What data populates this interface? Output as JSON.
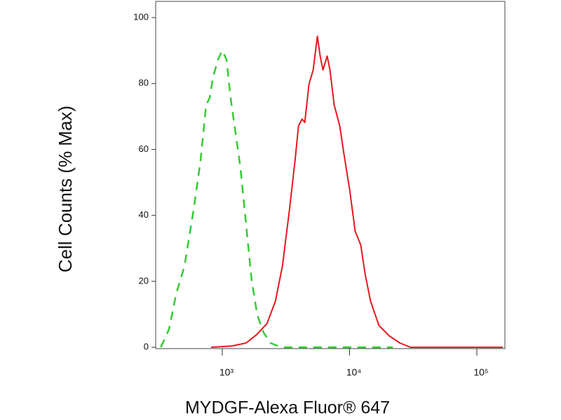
{
  "chart_data": {
    "type": "line",
    "x_label": "MYDGF-Alexa Fluor® 647",
    "y_label": "Cell Counts (% Max)",
    "xscale": "log",
    "xlim": [
      300,
      166000
    ],
    "ylim": [
      -0.4,
      104.9
    ],
    "xticks": [
      {
        "value": 1000,
        "label": "10³"
      },
      {
        "value": 10000,
        "label": "10⁴"
      },
      {
        "value": 100000,
        "label": "10⁵"
      }
    ],
    "yticks": [
      0,
      20,
      40,
      60,
      80,
      100
    ],
    "series": [
      {
        "color": "#33cc33",
        "style": "dashed",
        "x": [
          329,
          382,
          434,
          505,
          595,
          675,
          747,
          796,
          848,
          927,
          1000,
          1079,
          1164,
          1272,
          1390,
          1538,
          1701,
          1883,
          2110,
          2394,
          2894,
          21910
        ],
        "values": [
          0,
          5.5,
          16.1,
          24.6,
          41.6,
          56.5,
          73.5,
          75.6,
          82,
          87.3,
          90,
          87.3,
          75.6,
          65,
          54.4,
          37.4,
          20.4,
          9.8,
          4.5,
          1.3,
          0,
          0
        ]
      },
      {
        "color": "#e8171e",
        "style": "solid",
        "x": [
          817,
          1194,
          1538,
          1859,
          2247,
          2616,
          2969,
          3370,
          3728,
          3971,
          4231,
          4450,
          4800,
          5179,
          5587,
          5878,
          6183,
          6672,
          7019,
          7570,
          8377,
          9036,
          10000,
          11070,
          12250,
          13210,
          14610,
          17020,
          20570,
          24860,
          30060,
          160000
        ],
        "values": [
          0,
          0.4,
          1.3,
          3.8,
          7.2,
          14,
          24.6,
          41.6,
          56.5,
          67.1,
          69.2,
          68.2,
          79.8,
          84.1,
          94.3,
          88.3,
          84.1,
          88.3,
          84.1,
          73.5,
          67.1,
          58.6,
          48,
          35.2,
          31,
          22.5,
          14,
          6.6,
          3.4,
          1.3,
          0,
          0
        ]
      }
    ]
  }
}
